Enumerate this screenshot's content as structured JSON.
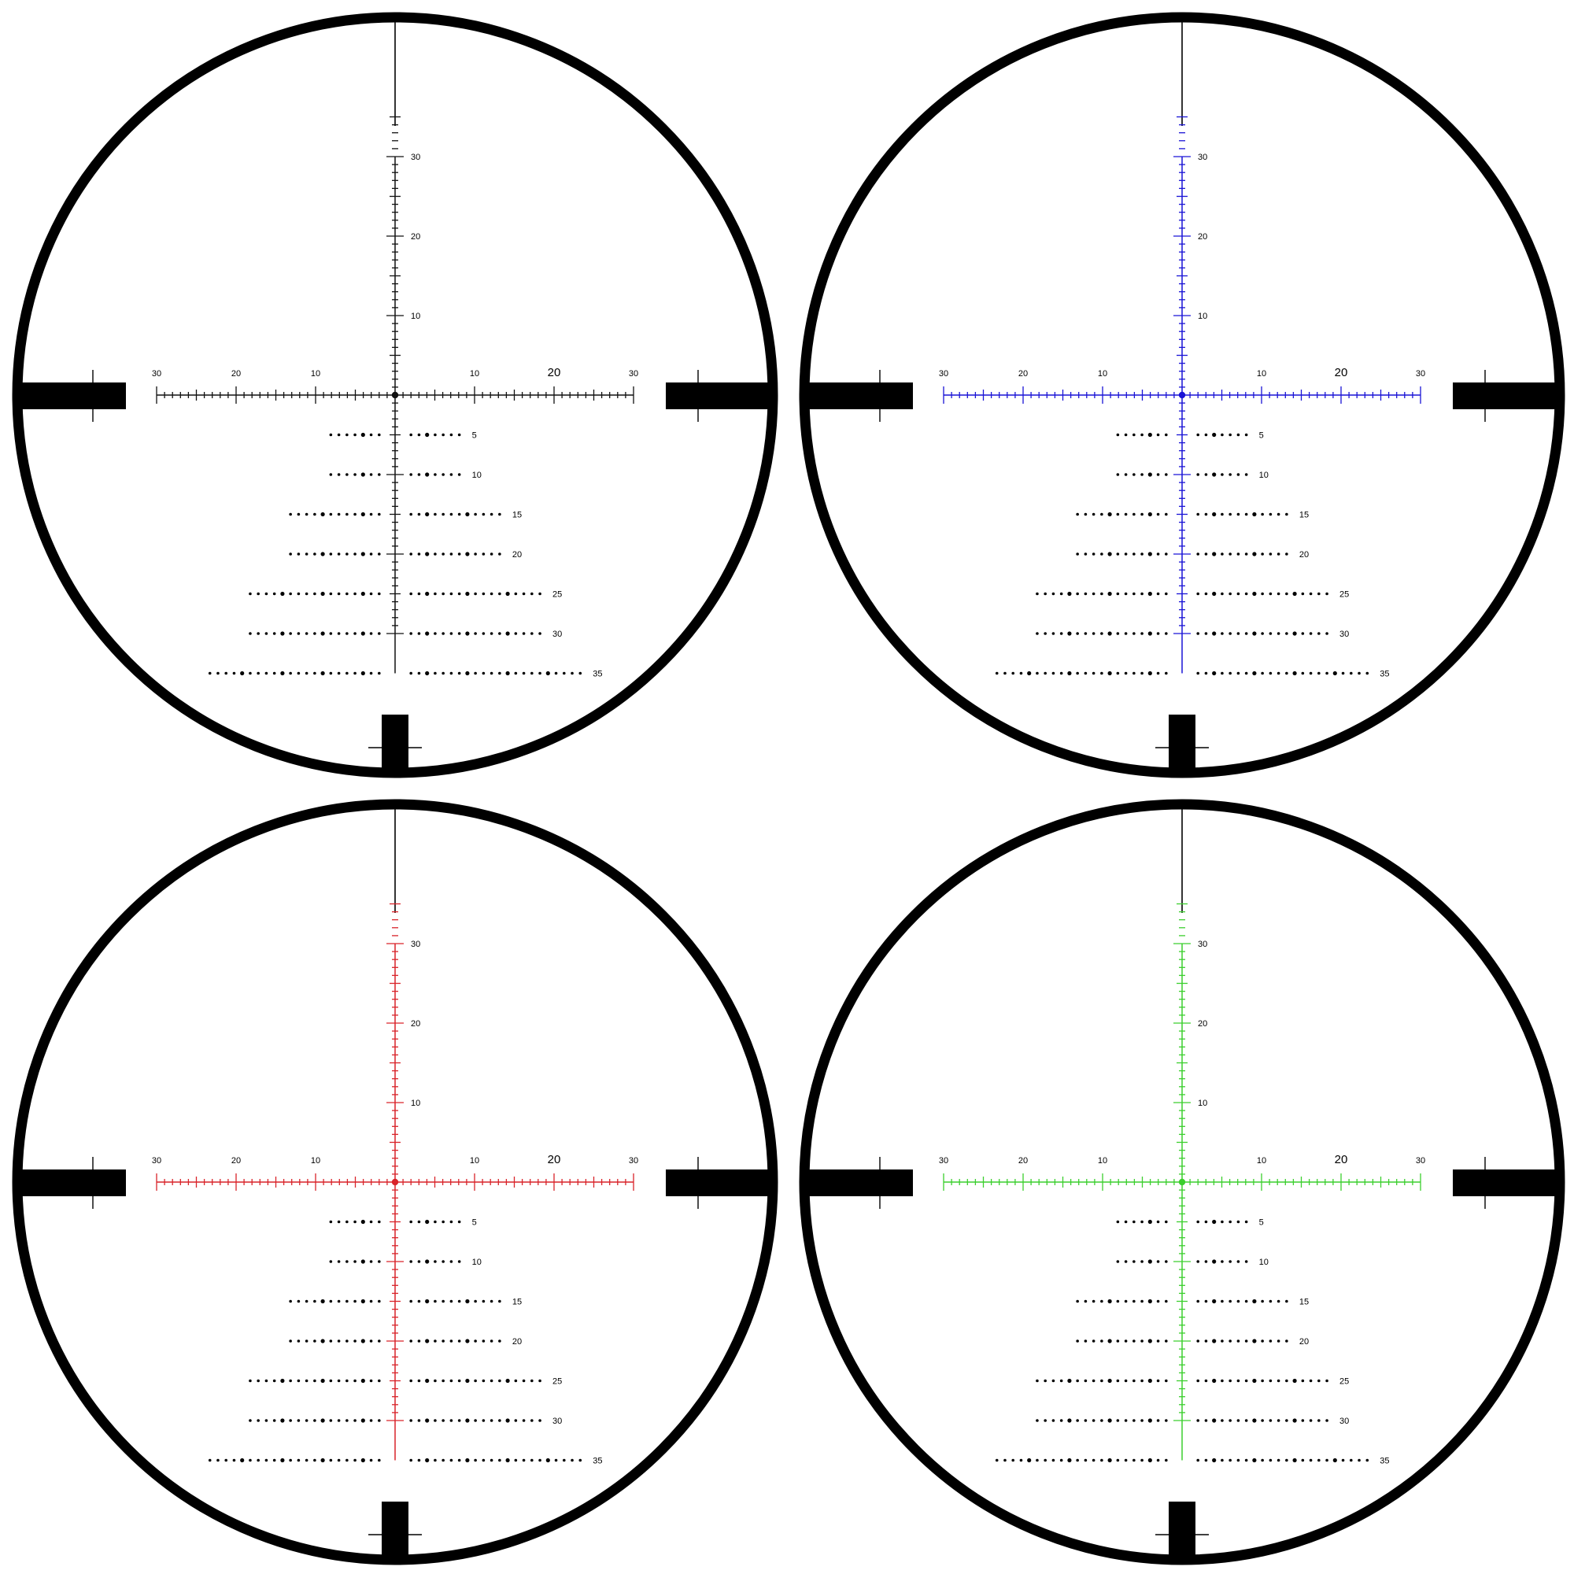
{
  "reticles": [
    {
      "id": "black",
      "color": "#111111"
    },
    {
      "id": "blue",
      "color": "#1a14d6"
    },
    {
      "id": "red",
      "color": "#d9242a"
    },
    {
      "id": "green",
      "color": "#3ccf2e"
    }
  ],
  "vertical_labels": [
    "30",
    "20",
    "10"
  ],
  "horizontal_labels_left": [
    "30",
    "20",
    "10"
  ],
  "horizontal_labels_right": [
    "10",
    "20",
    "30"
  ],
  "holdover_rows": [
    {
      "label": "5",
      "left_dots": 7,
      "right_dots": 7
    },
    {
      "label": "10",
      "left_dots": 7,
      "right_dots": 7
    },
    {
      "label": "15",
      "left_dots": 12,
      "right_dots": 12
    },
    {
      "label": "20",
      "left_dots": 12,
      "right_dots": 12
    },
    {
      "label": "25",
      "left_dots": 17,
      "right_dots": 17
    },
    {
      "label": "30",
      "left_dots": 17,
      "right_dots": 17
    },
    {
      "label": "35",
      "left_dots": 22,
      "right_dots": 22
    }
  ]
}
